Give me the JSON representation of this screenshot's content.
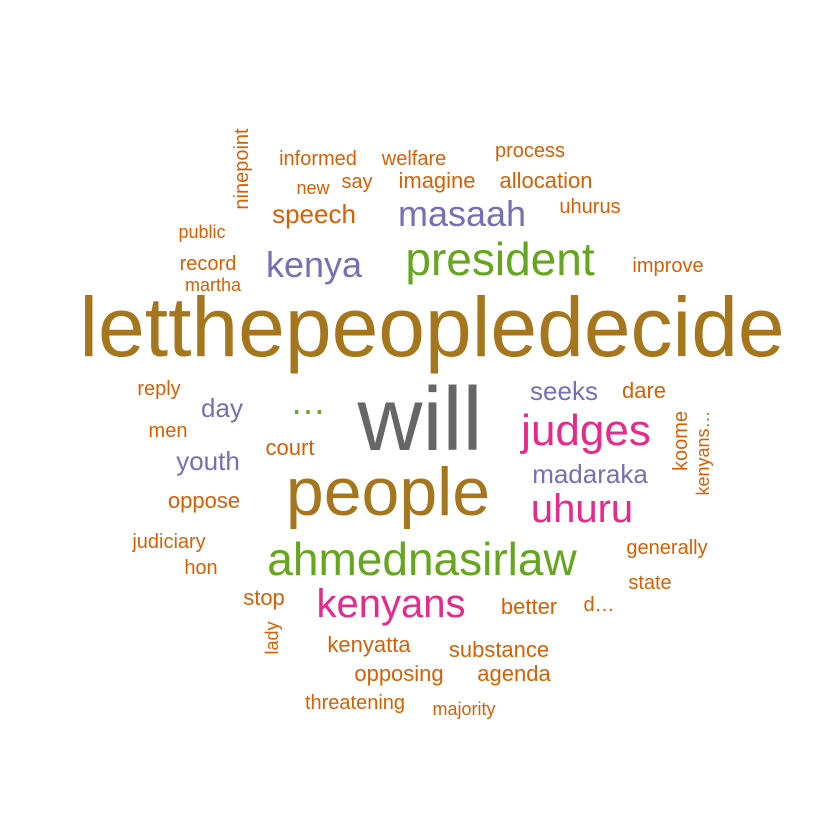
{
  "palette": {
    "olive": "#A6761D",
    "gray": "#666666",
    "magenta": "#E7298A",
    "green": "#66A61E",
    "purple": "#7570B3",
    "orange": "#D95F02"
  },
  "words": [
    {
      "id": "letthepeopledecide",
      "text": "letthepeopledecide",
      "color": "olive"
    },
    {
      "id": "will",
      "text": "will",
      "color": "gray"
    },
    {
      "id": "people",
      "text": "people",
      "color": "olive"
    },
    {
      "id": "president",
      "text": "president",
      "color": "green"
    },
    {
      "id": "ahmednasirlaw",
      "text": "ahmednasirlaw",
      "color": "green"
    },
    {
      "id": "judges",
      "text": "judges",
      "color": "magenta"
    },
    {
      "id": "kenyans",
      "text": "kenyans",
      "color": "magenta"
    },
    {
      "id": "uhuru",
      "text": "uhuru",
      "color": "magenta"
    },
    {
      "id": "masaah",
      "text": "masaah",
      "color": "purple"
    },
    {
      "id": "kenya",
      "text": "kenya",
      "color": "purple"
    },
    {
      "id": "ellipsis",
      "text": "…",
      "color": "green"
    },
    {
      "id": "seeks",
      "text": "seeks",
      "color": "purple"
    },
    {
      "id": "madaraka",
      "text": "madaraka",
      "color": "purple"
    },
    {
      "id": "day",
      "text": "day",
      "color": "purple"
    },
    {
      "id": "youth",
      "text": "youth",
      "color": "purple"
    },
    {
      "id": "speech",
      "text": "speech",
      "color": "orange"
    },
    {
      "id": "oppose",
      "text": "oppose",
      "color": "orange"
    },
    {
      "id": "better",
      "text": "better",
      "color": "orange"
    },
    {
      "id": "informed",
      "text": "informed",
      "color": "orange"
    },
    {
      "id": "welfare",
      "text": "welfare",
      "color": "orange"
    },
    {
      "id": "process",
      "text": "process",
      "color": "orange"
    },
    {
      "id": "new",
      "text": "new",
      "color": "orange"
    },
    {
      "id": "say",
      "text": "say",
      "color": "orange"
    },
    {
      "id": "imagine",
      "text": "imagine",
      "color": "orange"
    },
    {
      "id": "allocation",
      "text": "allocation",
      "color": "orange"
    },
    {
      "id": "uhurus",
      "text": "uhurus",
      "color": "orange"
    },
    {
      "id": "ninepoint",
      "text": "ninepoint",
      "color": "orange"
    },
    {
      "id": "public",
      "text": "public",
      "color": "orange"
    },
    {
      "id": "record",
      "text": "record",
      "color": "orange"
    },
    {
      "id": "martha",
      "text": "martha",
      "color": "orange"
    },
    {
      "id": "improve",
      "text": "improve",
      "color": "orange"
    },
    {
      "id": "reply",
      "text": "reply",
      "color": "orange"
    },
    {
      "id": "dare",
      "text": "dare",
      "color": "orange"
    },
    {
      "id": "men",
      "text": "men",
      "color": "orange"
    },
    {
      "id": "court",
      "text": "court",
      "color": "orange"
    },
    {
      "id": "koome",
      "text": "koome",
      "color": "orange"
    },
    {
      "id": "kenyans-trunc",
      "text": "kenyans…",
      "color": "orange"
    },
    {
      "id": "judiciary",
      "text": "judiciary",
      "color": "orange"
    },
    {
      "id": "hon",
      "text": "hon",
      "color": "orange"
    },
    {
      "id": "generally",
      "text": "generally",
      "color": "orange"
    },
    {
      "id": "state",
      "text": "state",
      "color": "orange"
    },
    {
      "id": "stop",
      "text": "stop",
      "color": "orange"
    },
    {
      "id": "d-trunc",
      "text": "d…",
      "color": "orange"
    },
    {
      "id": "lady",
      "text": "lady",
      "color": "orange"
    },
    {
      "id": "kenyatta",
      "text": "kenyatta",
      "color": "orange"
    },
    {
      "id": "substance",
      "text": "substance",
      "color": "orange"
    },
    {
      "id": "opposing",
      "text": "opposing",
      "color": "orange"
    },
    {
      "id": "agenda",
      "text": "agenda",
      "color": "orange"
    },
    {
      "id": "threatening",
      "text": "threatening",
      "color": "orange"
    },
    {
      "id": "majority",
      "text": "majority",
      "color": "orange"
    }
  ]
}
